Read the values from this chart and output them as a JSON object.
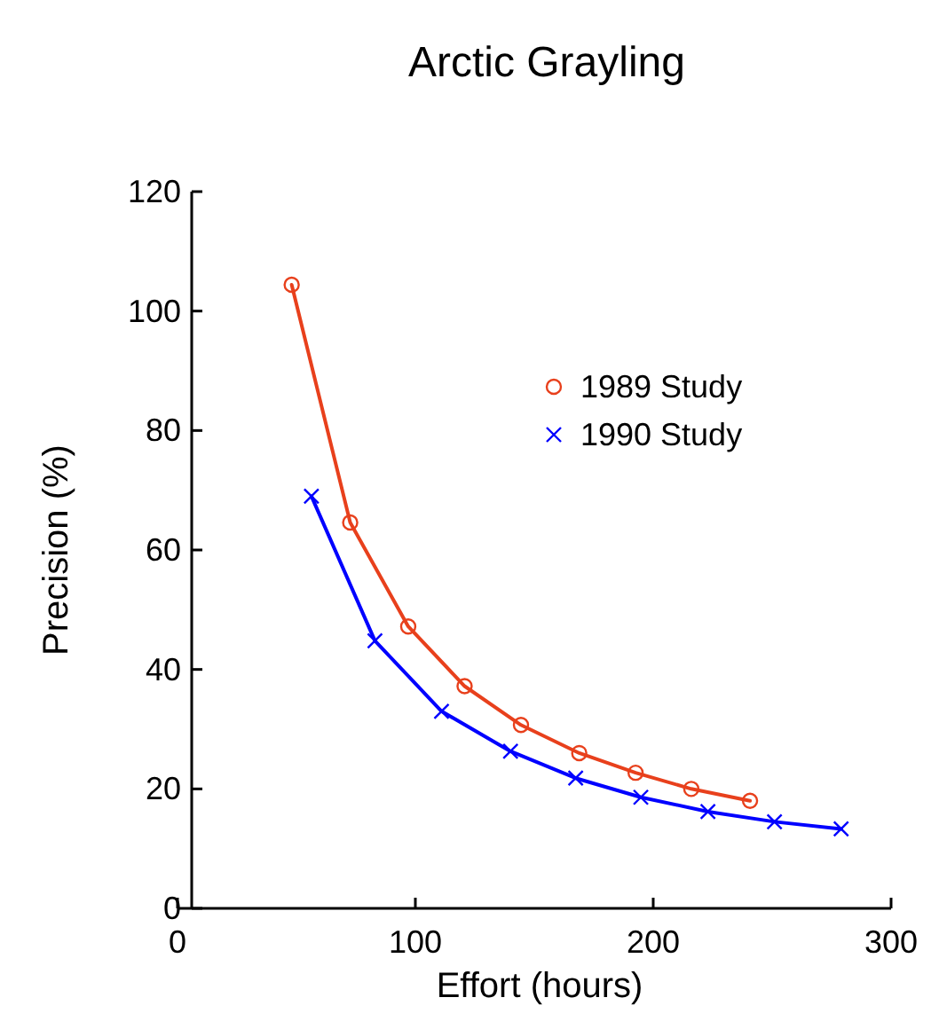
{
  "chart_data": {
    "type": "line",
    "title": "Arctic Grayling",
    "xlabel": "Effort (hours)",
    "ylabel": "Precision (%)",
    "xlim": [
      0,
      300
    ],
    "xticks": [
      0,
      100,
      200,
      300
    ],
    "ylim": [
      0,
      120
    ],
    "yticks": [
      0,
      20,
      40,
      60,
      80,
      100,
      120
    ],
    "grid": false,
    "legend": "top right",
    "series": [
      {
        "name": "1989 Study",
        "color": "#e8401c",
        "marker": "circle",
        "x": [
          48,
          72.6,
          97,
          120.7,
          144.4,
          168.9,
          192.6,
          216,
          240.7
        ],
        "values": [
          104.4,
          64.6,
          47.2,
          37.2,
          30.7,
          26,
          22.7,
          20,
          18
        ]
      },
      {
        "name": "1990 Study",
        "color": "#0000ff",
        "marker": "cross",
        "x": [
          56.3,
          83,
          111,
          140,
          167.4,
          194.8,
          223,
          251,
          279
        ],
        "values": [
          69,
          44.8,
          33,
          26.3,
          21.8,
          18.6,
          16.2,
          14.5,
          13.3
        ]
      }
    ]
  }
}
